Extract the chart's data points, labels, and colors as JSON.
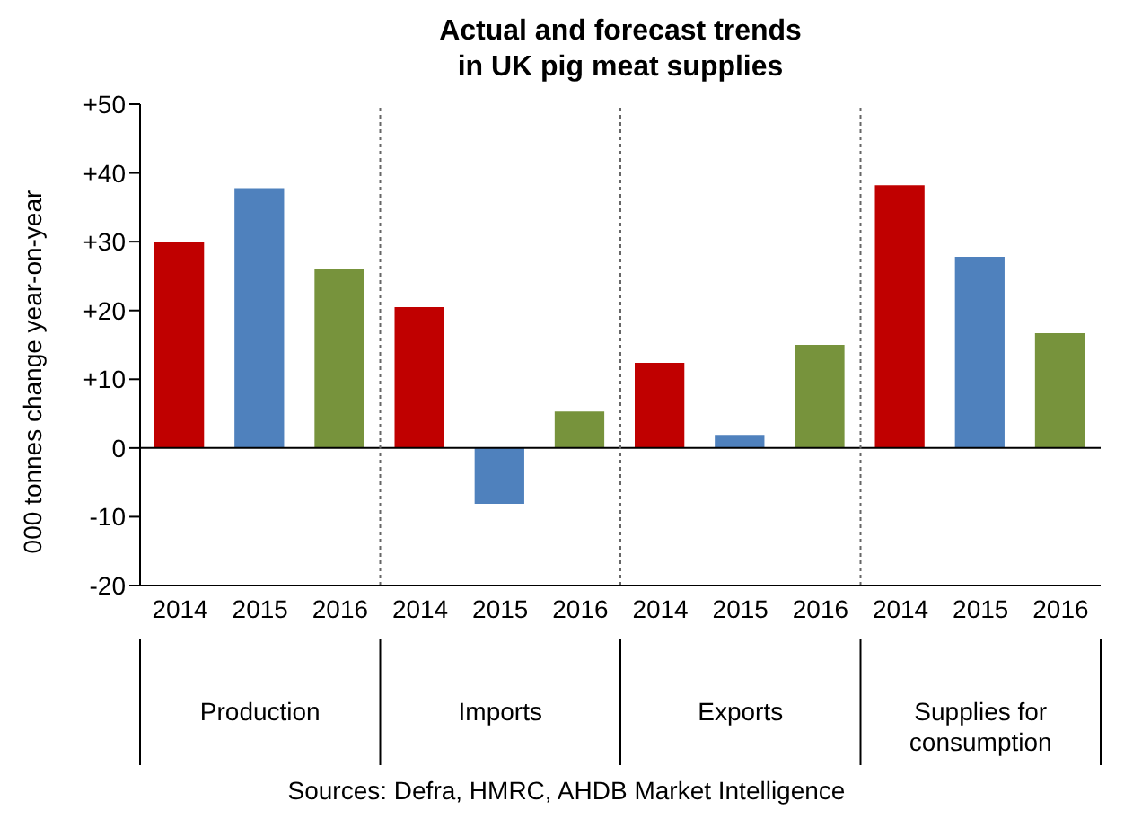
{
  "chart_data": {
    "type": "bar",
    "title": "Actual and forecast trends\nin UK pig meat supplies",
    "ylabel": "000 tonnes change year-on-year",
    "categories": [
      "2014",
      "2015",
      "2016",
      "2014",
      "2015",
      "2016",
      "2014",
      "2015",
      "2016",
      "2014",
      "2015",
      "2016"
    ],
    "values": [
      29.9,
      37.8,
      26.1,
      20.5,
      -8.1,
      5.3,
      12.4,
      1.9,
      15.0,
      38.2,
      27.8,
      16.7
    ],
    "colors": [
      "#c00000",
      "#4f81bd",
      "#77933c",
      "#c00000",
      "#4f81bd",
      "#77933c",
      "#c00000",
      "#4f81bd",
      "#77933c",
      "#c00000",
      "#4f81bd",
      "#77933c"
    ],
    "ylim": [
      -20,
      50
    ],
    "yticks": [
      {
        "value": -20,
        "label": "-20"
      },
      {
        "value": -10,
        "label": "-10"
      },
      0,
      {
        "value": 10,
        "label": "+10"
      },
      {
        "value": 20,
        "label": "+20"
      },
      {
        "value": 30,
        "label": "+30"
      },
      {
        "value": 40,
        "label": "+40"
      },
      {
        "value": 50,
        "label": "+50"
      }
    ],
    "annotations": [
      "Production",
      "Imports",
      "Exports",
      "Supplies for\nconsumption",
      "Sources: Defra, HMRC, AHDB Market Intelligence"
    ]
  }
}
